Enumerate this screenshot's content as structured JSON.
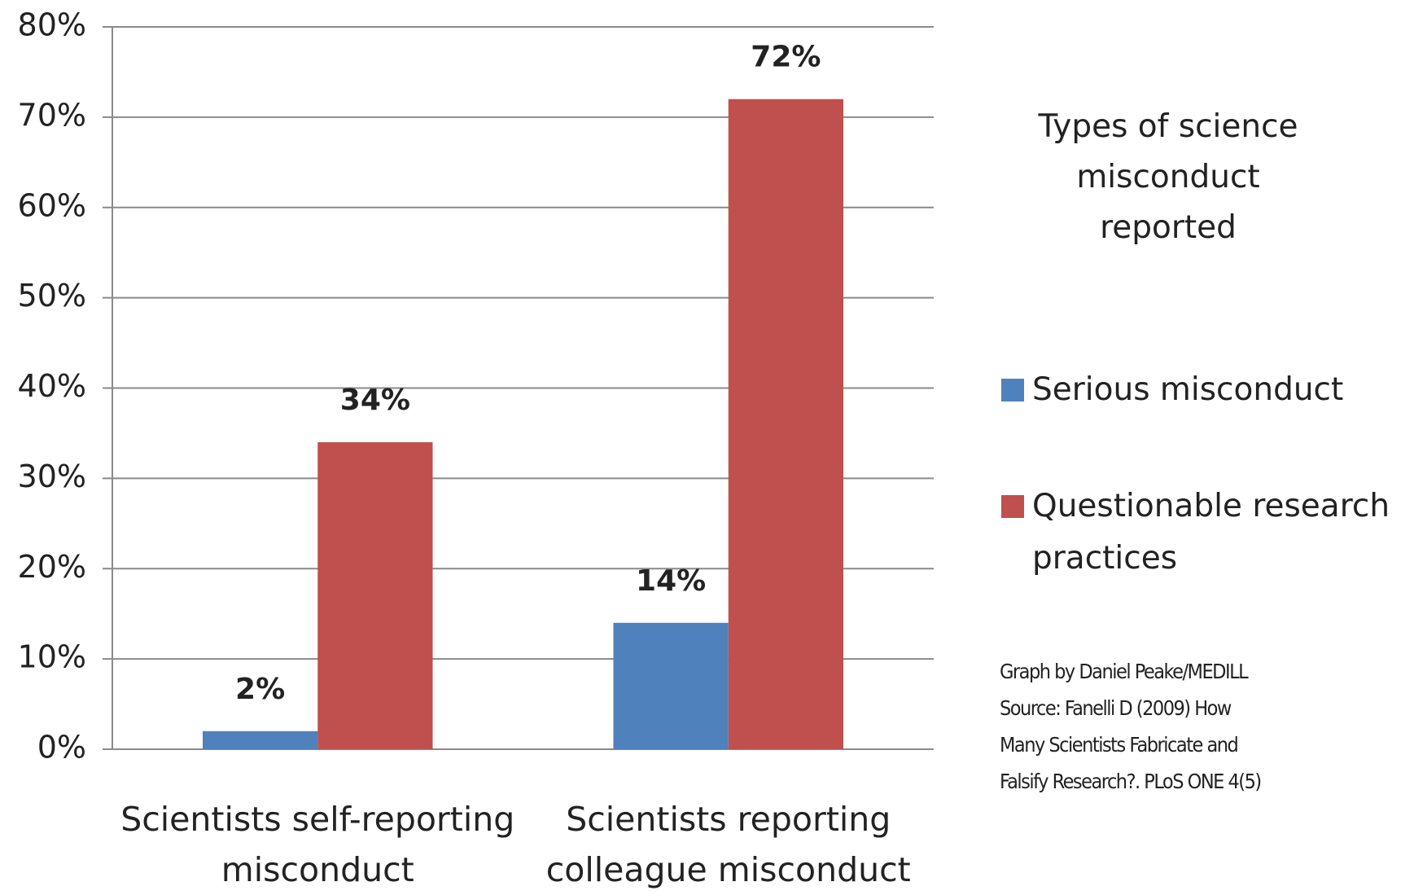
{
  "chart_data": {
    "type": "bar",
    "categories": [
      "Scientists self-reporting misconduct",
      "Scientists reporting colleague misconduct"
    ],
    "series": [
      {
        "name": "Serious misconduct",
        "color": "#4f81bd",
        "values": [
          2,
          14
        ],
        "value_labels": [
          "2%",
          "14%"
        ]
      },
      {
        "name": "Questionable research practices",
        "color": "#c0504d",
        "values": [
          34,
          72
        ],
        "value_labels": [
          "34%",
          "72%"
        ]
      }
    ],
    "ylim": [
      0,
      80
    ],
    "yticks": [
      {
        "value": 0,
        "label": "0%"
      },
      {
        "value": 10,
        "label": "10%"
      },
      {
        "value": 20,
        "label": "20%"
      },
      {
        "value": 30,
        "label": "30%"
      },
      {
        "value": 40,
        "label": "40%"
      },
      {
        "value": 50,
        "label": "50%"
      },
      {
        "value": 60,
        "label": "60%"
      },
      {
        "value": 70,
        "label": "70%"
      },
      {
        "value": 80,
        "label": "80%"
      }
    ],
    "grid": true,
    "legend_title": "Types of science misconduct reported",
    "legend": "right",
    "source": [
      "Graph by Daniel Peake/MEDILL",
      "Source: Fanelli D (2009) How",
      "Many Scientists Fabricate  and",
      "Falsify Research?. PLoS ONE 4(5)"
    ]
  }
}
